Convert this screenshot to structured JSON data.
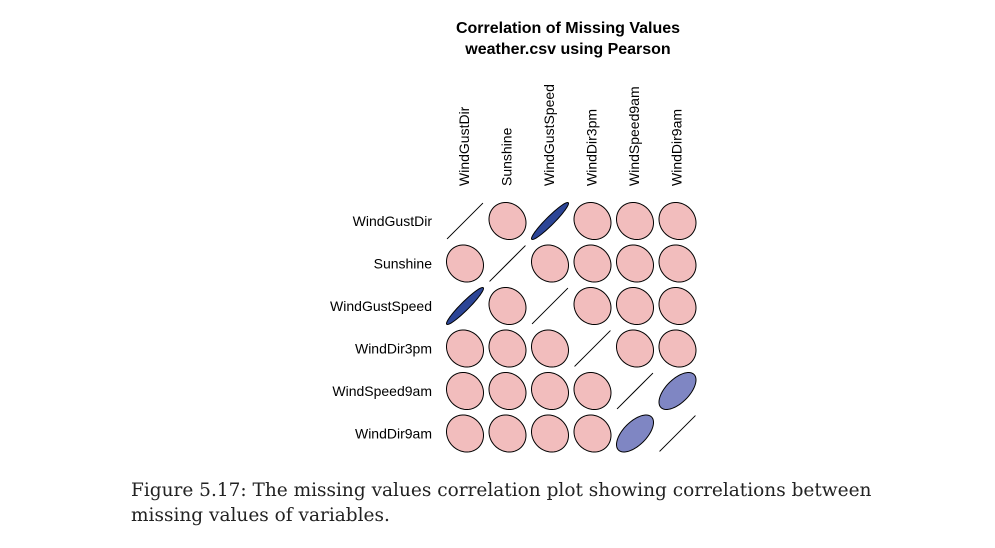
{
  "chart_data": {
    "type": "heatmap",
    "title": "Correlation of Missing Values",
    "subtitle": "weather.csv using Pearson",
    "variables": [
      "WindGustDir",
      "Sunshine",
      "WindGustSpeed",
      "WindDir3pm",
      "WindSpeed9am",
      "WindDir9am"
    ],
    "matrix": [
      [
        1.0,
        -0.1,
        0.95,
        -0.1,
        -0.1,
        -0.1
      ],
      [
        -0.1,
        1.0,
        -0.1,
        -0.1,
        -0.1,
        -0.1
      ],
      [
        0.95,
        -0.1,
        1.0,
        -0.1,
        -0.1,
        -0.1
      ],
      [
        -0.1,
        -0.1,
        -0.1,
        1.0,
        -0.1,
        -0.1
      ],
      [
        -0.1,
        -0.1,
        -0.1,
        -0.1,
        1.0,
        0.6
      ],
      [
        -0.1,
        -0.1,
        -0.1,
        -0.1,
        0.6,
        1.0
      ]
    ],
    "colors": {
      "negative": "#f2bdbd",
      "strong_positive": "#2c4596",
      "moderate_positive": "#7f86c3",
      "outline": "#000000"
    }
  },
  "caption": "Figure 5.17: The missing values correlation plot showing correlations between missing values of variables."
}
